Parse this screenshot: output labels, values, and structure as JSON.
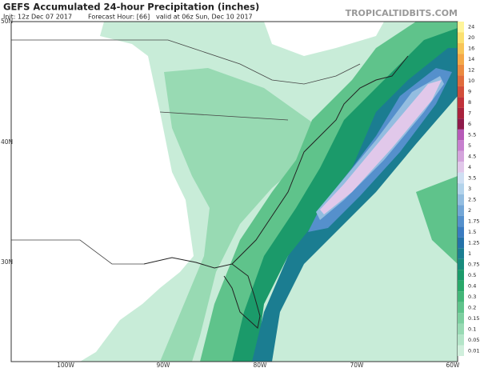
{
  "header": {
    "title": "GEFS Accumulated 24-hour Precipitation (inches)",
    "init": "Init: 12z Dec 07 2017",
    "forecast_hour": "Forecast Hour: [66]",
    "valid": "valid at 06z Sun, Dec 10 2017",
    "source": "TROPICALTIDBITS.COM"
  },
  "map": {
    "lat_labels": [
      "50N",
      "40N",
      "30N"
    ],
    "lon_labels": [
      "100W",
      "90W",
      "80W",
      "70W",
      "60W"
    ]
  },
  "colorbar": {
    "levels": [
      {
        "label": "24",
        "color": "#fff59a"
      },
      {
        "label": "20",
        "color": "#fbe070"
      },
      {
        "label": "16",
        "color": "#f8c558"
      },
      {
        "label": "14",
        "color": "#f4a848"
      },
      {
        "label": "12",
        "color": "#eb8a40"
      },
      {
        "label": "10",
        "color": "#e06c3c"
      },
      {
        "label": "9",
        "color": "#d24e3a"
      },
      {
        "label": "8",
        "color": "#c1323a"
      },
      {
        "label": "7",
        "color": "#a8223c"
      },
      {
        "label": "6",
        "color": "#8e1a4a"
      },
      {
        "label": "5.5",
        "color": "#b65ab7"
      },
      {
        "label": "5",
        "color": "#c67fce"
      },
      {
        "label": "4.5",
        "color": "#d4a4dc"
      },
      {
        "label": "4",
        "color": "#e1c8ea"
      },
      {
        "label": "3.5",
        "color": "#cfdff3"
      },
      {
        "label": "3",
        "color": "#b3d3eb"
      },
      {
        "label": "2.5",
        "color": "#93bde0"
      },
      {
        "label": "2",
        "color": "#73a6d6"
      },
      {
        "label": "1.75",
        "color": "#5590cc"
      },
      {
        "label": "1.5",
        "color": "#3a7bc0"
      },
      {
        "label": "1.25",
        "color": "#2472a8"
      },
      {
        "label": "1",
        "color": "#1b7d91"
      },
      {
        "label": "0.75",
        "color": "#188b7c"
      },
      {
        "label": "0.5",
        "color": "#1b9a6a"
      },
      {
        "label": "0.4",
        "color": "#2aa86a"
      },
      {
        "label": "0.3",
        "color": "#43b678"
      },
      {
        "label": "0.2",
        "color": "#5fc38b"
      },
      {
        "label": "0.15",
        "color": "#7ccf9f"
      },
      {
        "label": "0.1",
        "color": "#98dab3"
      },
      {
        "label": "0.05",
        "color": "#b4e5c8"
      },
      {
        "label": "0.01",
        "color": "#d0efdc"
      }
    ]
  }
}
